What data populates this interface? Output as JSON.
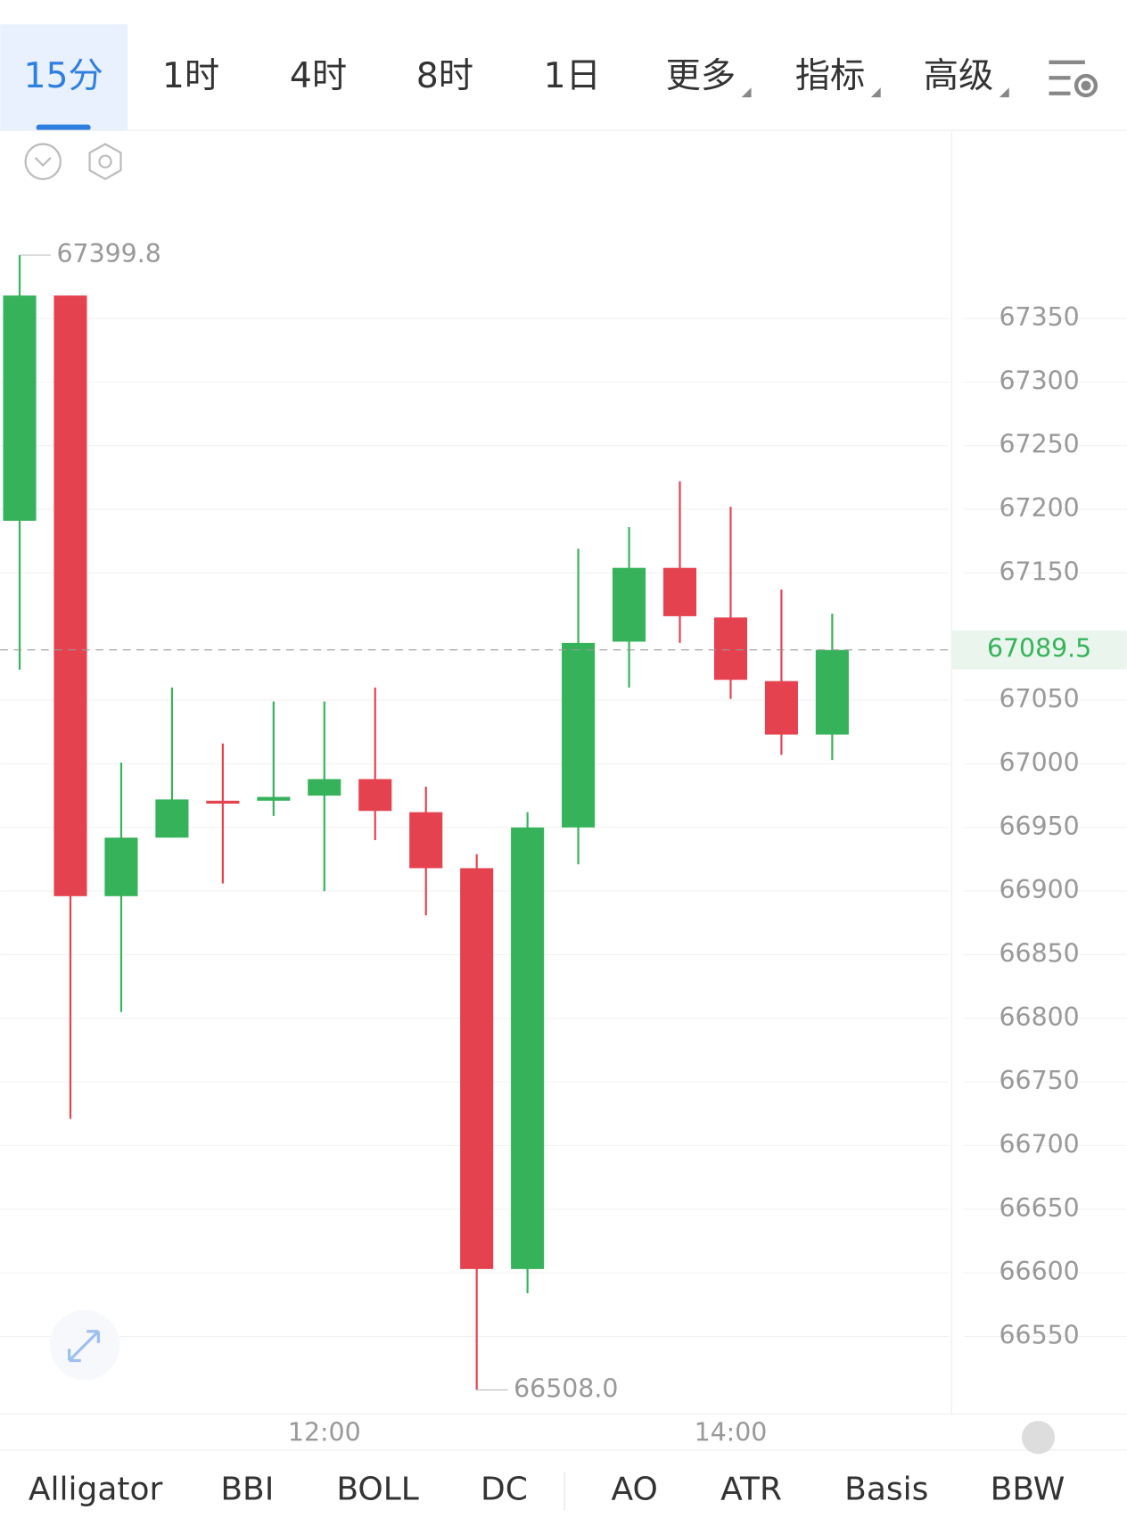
{
  "tabs": [
    "15分",
    "1时",
    "4时",
    "8时",
    "1日",
    "更多",
    "指标",
    "高级"
  ],
  "selected_tab": 0,
  "indicators": [
    "Alligator",
    "BBI",
    "BOLL",
    "DC",
    "AO",
    "ATR",
    "Basis",
    "BBW"
  ],
  "chart_data": {
    "type": "candlestick",
    "categories": [
      null,
      null,
      null,
      null,
      null,
      null,
      "12:00",
      null,
      null,
      null,
      null,
      null,
      null,
      null,
      "14:00",
      null,
      null
    ],
    "open": [
      67191,
      67368,
      66896,
      66942,
      66971,
      66971,
      66975,
      66988,
      66962,
      66918,
      66603,
      66950,
      67096,
      67154,
      67115,
      67065,
      67023
    ],
    "high": [
      67399.8,
      67368,
      67001,
      67060,
      67016,
      67049,
      67049,
      67060,
      66982,
      66929,
      66962,
      67169,
      67186,
      67222,
      67202,
      67137,
      67118
    ],
    "low": [
      67074,
      66721,
      66805,
      66942,
      66906,
      66959,
      66900,
      66940,
      66881,
      66508,
      66584,
      66921,
      67060,
      67095,
      67051,
      67007,
      67003
    ],
    "close": [
      67368,
      66896,
      66942,
      66972,
      66970,
      66974,
      66988,
      66963,
      66918,
      66603,
      66950,
      67095,
      67154,
      67116,
      67066,
      67023,
      67089.5
    ],
    "up_color": "#36b35a",
    "down_color": "#e5424f",
    "ylim": [
      66489,
      67497
    ],
    "yticks": [
      66550,
      66600,
      66650,
      66700,
      66750,
      66800,
      66850,
      66900,
      66950,
      67000,
      67050,
      67150,
      67200,
      67250,
      67300,
      67350
    ],
    "grid": true,
    "last_price": 67089.5,
    "annotations": [
      {
        "value": 67399.8,
        "label": "67399.8"
      },
      {
        "value": 66508,
        "label": "66508.0"
      }
    ]
  }
}
